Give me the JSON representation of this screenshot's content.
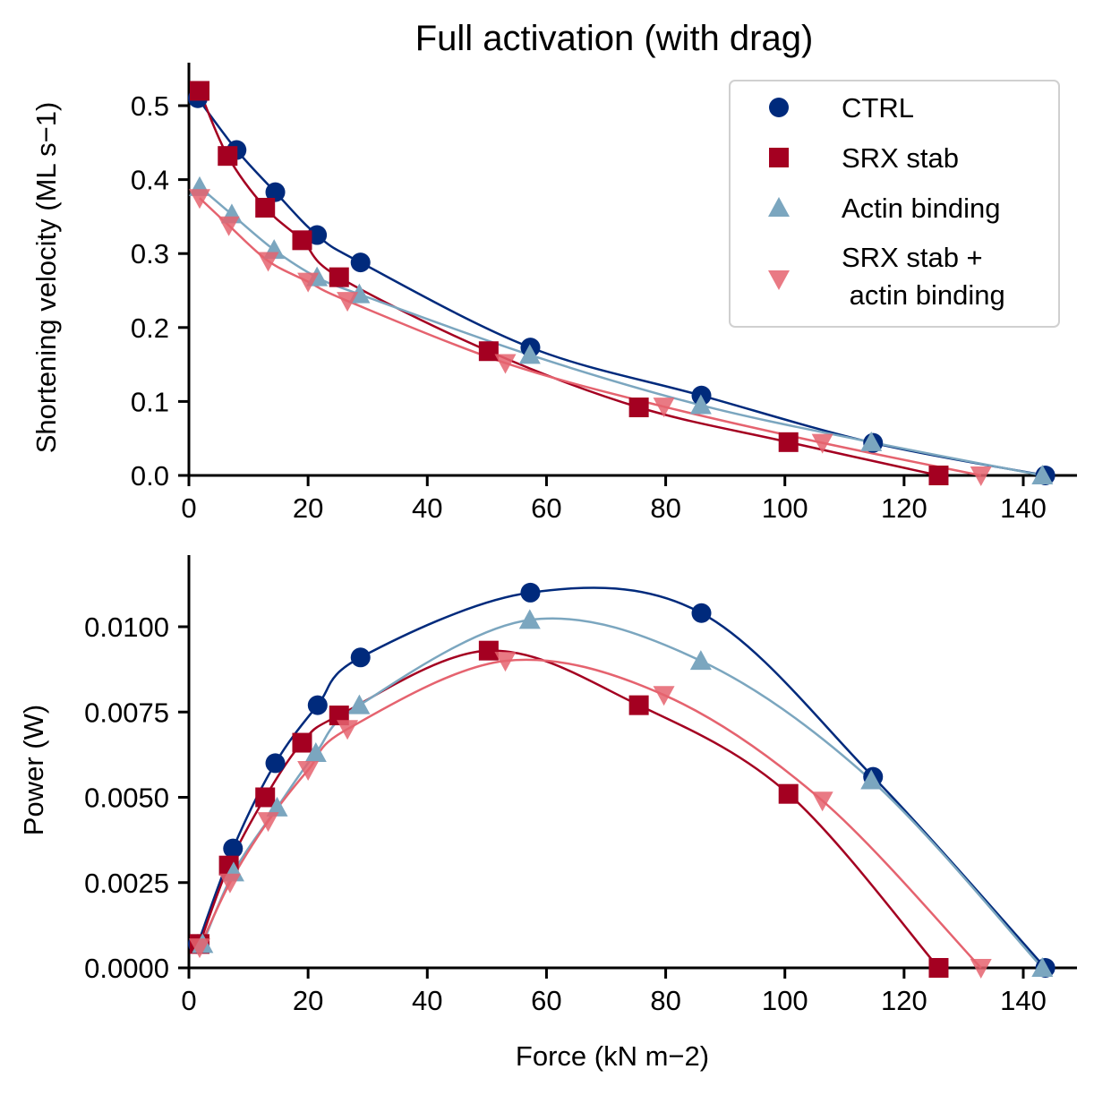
{
  "figure": {
    "title": "Full activation (with drag)"
  },
  "colors": {
    "CTRL": "#002a7c",
    "SRX stab": "#a40021",
    "Actin binding": "#7ba6bf",
    "SRX stab + actin binding": "#e5636f"
  },
  "legend": {
    "placement": "top-right",
    "entries": [
      {
        "label": "CTRL",
        "marker": "circle"
      },
      {
        "label": "SRX stab",
        "marker": "square"
      },
      {
        "label": "Actin binding",
        "marker": "triangle-up"
      },
      {
        "label_lines": [
          "SRX stab +",
          " actin binding"
        ],
        "marker": "triangle-down"
      }
    ]
  },
  "chart_data": [
    {
      "type": "scatter",
      "xlabel": "",
      "ylabel": "Shortening velocity (ML s−1)",
      "xlim": [
        0,
        150
      ],
      "ylim": [
        0,
        0.56
      ],
      "xticks": [
        "0",
        "20",
        "40",
        "60",
        "80",
        "100",
        "120",
        "140"
      ],
      "yticks": [
        "0.0",
        "0.1",
        "0.2",
        "0.3",
        "0.4",
        "0.5"
      ],
      "ytick_values": [
        0,
        0.1,
        0.2,
        0.3,
        0.4,
        0.5
      ],
      "series": [
        {
          "name": "CTRL",
          "marker": "circle",
          "x": [
            1.5,
            8,
            14.5,
            21.5,
            28.8,
            57.3,
            86,
            114.8,
            143.7
          ],
          "y": [
            0.51,
            0.44,
            0.383,
            0.325,
            0.288,
            0.173,
            0.108,
            0.044,
            0.0
          ]
        },
        {
          "name": "SRX stab",
          "marker": "square",
          "x": [
            1.8,
            6.5,
            12.8,
            19,
            25.2,
            50.3,
            75.5,
            100.6,
            125.8
          ],
          "y": [
            0.52,
            0.432,
            0.362,
            0.318,
            0.268,
            0.168,
            0.092,
            0.045,
            0.0
          ]
        },
        {
          "name": "Actin binding",
          "marker": "triangle-up",
          "x": [
            1.8,
            7.2,
            14.3,
            21.5,
            28.6,
            57.2,
            85.9,
            114.5,
            143.2
          ],
          "y": [
            0.39,
            0.353,
            0.305,
            0.268,
            0.245,
            0.163,
            0.095,
            0.045,
            0.0
          ]
        },
        {
          "name": "SRX stab + actin binding",
          "marker": "triangle-down",
          "x": [
            1.8,
            6.7,
            13.3,
            20,
            26.6,
            53.1,
            79.7,
            106.3,
            132.9
          ],
          "y": [
            0.375,
            0.338,
            0.29,
            0.262,
            0.236,
            0.152,
            0.093,
            0.044,
            0.0
          ]
        }
      ]
    },
    {
      "type": "scatter",
      "xlabel": "Force (kN m−2)",
      "ylabel": "Power (W)",
      "xlim": [
        0,
        150
      ],
      "ylim": [
        0,
        0.0121
      ],
      "xticks": [
        "0",
        "20",
        "40",
        "60",
        "80",
        "100",
        "120",
        "140"
      ],
      "yticks": [
        "0.0000",
        "0.0025",
        "0.0050",
        "0.0075",
        "0.0100"
      ],
      "ytick_values": [
        0,
        0.0025,
        0.005,
        0.0075,
        0.01
      ],
      "series": [
        {
          "name": "CTRL",
          "marker": "circle",
          "x": [
            1.5,
            7.4,
            14.5,
            21.6,
            28.8,
            57.3,
            86,
            114.8,
            143.7
          ],
          "y": [
            0.0007,
            0.0035,
            0.006,
            0.0077,
            0.0091,
            0.011,
            0.0104,
            0.0056,
            0.0
          ]
        },
        {
          "name": "SRX stab",
          "marker": "square",
          "x": [
            1.8,
            6.7,
            12.8,
            19,
            25.2,
            50.3,
            75.5,
            100.6,
            125.8
          ],
          "y": [
            0.0007,
            0.003,
            0.005,
            0.0066,
            0.0074,
            0.0093,
            0.0077,
            0.0051,
            0.0
          ]
        },
        {
          "name": "Actin binding",
          "marker": "triangle-up",
          "x": [
            2.3,
            7.5,
            14.8,
            21.3,
            28.6,
            57.2,
            85.9,
            114.5,
            143.2
          ],
          "y": [
            0.0007,
            0.0028,
            0.0047,
            0.0063,
            0.0077,
            0.0102,
            0.009,
            0.0055,
            0.0
          ]
        },
        {
          "name": "SRX stab + actin binding",
          "marker": "triangle-down",
          "x": [
            1.8,
            6.9,
            13.3,
            20,
            26.6,
            53.1,
            79.7,
            106.3,
            132.9
          ],
          "y": [
            0.0006,
            0.0025,
            0.0043,
            0.0058,
            0.007,
            0.009,
            0.008,
            0.0049,
            0.0
          ]
        }
      ]
    }
  ]
}
